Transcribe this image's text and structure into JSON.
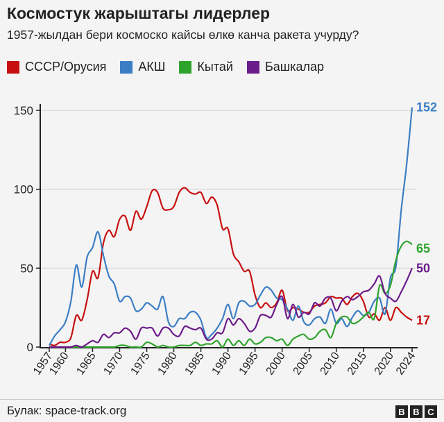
{
  "header": {
    "title": "Космостук жарыштагы лидерлер",
    "subtitle": "1957-жылдан бери космоско кайсы өлкө канча ракета учурду?"
  },
  "footer": {
    "source": "Булак: space-track.org",
    "logo_letters": [
      "B",
      "B",
      "C"
    ]
  },
  "chart_data": {
    "type": "line",
    "title": "Космостук жарыштагы лидерлер",
    "subtitle": "1957-жылдан бери космоско кайсы өлкө канча ракета учурду?",
    "xlabel": "",
    "ylabel": "",
    "ylim": [
      0,
      155
    ],
    "xlim": [
      1957,
      2024
    ],
    "yticks": [
      0,
      50,
      100,
      150
    ],
    "xticks": [
      1957,
      1960,
      1965,
      1970,
      1975,
      1980,
      1985,
      1990,
      1995,
      2000,
      2005,
      2010,
      2015,
      2020,
      2024
    ],
    "grid": true,
    "legend_position": "top-left",
    "x_start": 1957,
    "series": [
      {
        "name": "СССР/Орусия",
        "color": "#c80f0f",
        "end_label": "17",
        "values": [
          2,
          1,
          3,
          3,
          6,
          20,
          17,
          30,
          48,
          44,
          66,
          74,
          70,
          81,
          83,
          74,
          86,
          81,
          89,
          99,
          98,
          88,
          87,
          89,
          98,
          101,
          98,
          97,
          98,
          91,
          95,
          90,
          75,
          75,
          59,
          54,
          48,
          48,
          33,
          25,
          28,
          25,
          28,
          36,
          23,
          25,
          24,
          22,
          22,
          26,
          27,
          28,
          32,
          31,
          31,
          27,
          32,
          34,
          29,
          19,
          21,
          17,
          25,
          17,
          25,
          22,
          19,
          17
        ]
      },
      {
        "name": "АКШ",
        "color": "#3b7ec4",
        "end_label": "152",
        "values": [
          1,
          7,
          11,
          16,
          29,
          52,
          38,
          57,
          63,
          73,
          58,
          45,
          40,
          29,
          32,
          31,
          23,
          24,
          28,
          26,
          24,
          32,
          16,
          13,
          18,
          18,
          22,
          22,
          17,
          6,
          8,
          12,
          18,
          27,
          18,
          28,
          29,
          26,
          27,
          33,
          38,
          36,
          31,
          30,
          24,
          17,
          26,
          16,
          14,
          18,
          19,
          15,
          24,
          15,
          18,
          13,
          19,
          23,
          20,
          22,
          29,
          31,
          21,
          44,
          51,
          87,
          116,
          152
        ]
      },
      {
        "name": "Кытай",
        "color": "#2ea32c",
        "end_label": "65",
        "values": [
          0,
          0,
          0,
          0,
          0,
          0,
          0,
          0,
          0,
          0,
          0,
          0,
          0,
          1,
          1,
          0,
          0,
          0,
          3,
          2,
          0,
          1,
          0,
          0,
          1,
          1,
          1,
          3,
          1,
          2,
          2,
          4,
          0,
          5,
          1,
          4,
          1,
          5,
          2,
          3,
          6,
          6,
          4,
          5,
          1,
          5,
          7,
          8,
          5,
          6,
          10,
          11,
          6,
          15,
          19,
          19,
          15,
          16,
          19,
          22,
          18,
          39,
          34,
          39,
          55,
          64,
          67,
          65
        ]
      },
      {
        "name": "Башкалар",
        "color": "#6c1c8a",
        "end_label": "50",
        "values": [
          0,
          0,
          0,
          0,
          0,
          1,
          0,
          2,
          4,
          3,
          8,
          6,
          9,
          9,
          12,
          10,
          5,
          12,
          12,
          12,
          7,
          12,
          12,
          8,
          7,
          13,
          12,
          11,
          12,
          5,
          5,
          9,
          9,
          18,
          14,
          18,
          15,
          10,
          12,
          20,
          20,
          19,
          27,
          32,
          18,
          27,
          19,
          22,
          21,
          28,
          26,
          31,
          31,
          23,
          29,
          32,
          30,
          32,
          35,
          36,
          40,
          45,
          34,
          31,
          29,
          35,
          42,
          50
        ]
      }
    ]
  }
}
